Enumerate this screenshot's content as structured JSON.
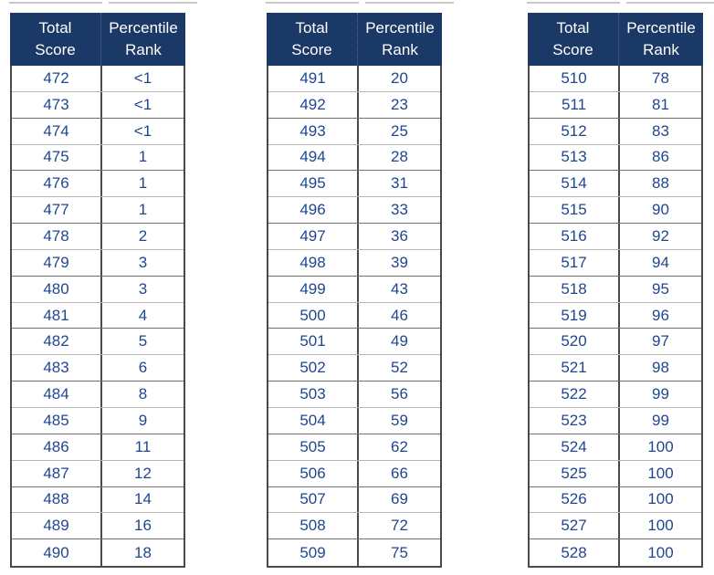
{
  "colors": {
    "header_bg": "#1B3966",
    "header_text": "#FFFFFF",
    "cell_text": "#1F4690",
    "outer_border": "#4A4A4A",
    "row_line_light": "#B5B5B5",
    "row_line_dark": "#6F6F6F"
  },
  "tables": [
    {
      "header": {
        "score": "Total\nScore",
        "rank": "Percentile\nRank"
      },
      "rows": [
        {
          "score": "472",
          "rank": "<1"
        },
        {
          "score": "473",
          "rank": "<1"
        },
        {
          "score": "474",
          "rank": "<1"
        },
        {
          "score": "475",
          "rank": "1"
        },
        {
          "score": "476",
          "rank": "1"
        },
        {
          "score": "477",
          "rank": "1"
        },
        {
          "score": "478",
          "rank": "2"
        },
        {
          "score": "479",
          "rank": "3"
        },
        {
          "score": "480",
          "rank": "3"
        },
        {
          "score": "481",
          "rank": "4"
        },
        {
          "score": "482",
          "rank": "5"
        },
        {
          "score": "483",
          "rank": "6"
        },
        {
          "score": "484",
          "rank": "8"
        },
        {
          "score": "485",
          "rank": "9"
        },
        {
          "score": "486",
          "rank": "11"
        },
        {
          "score": "487",
          "rank": "12"
        },
        {
          "score": "488",
          "rank": "14"
        },
        {
          "score": "489",
          "rank": "16"
        },
        {
          "score": "490",
          "rank": "18"
        }
      ]
    },
    {
      "header": {
        "score": "Total\nScore",
        "rank": "Percentile\nRank"
      },
      "rows": [
        {
          "score": "491",
          "rank": "20"
        },
        {
          "score": "492",
          "rank": "23"
        },
        {
          "score": "493",
          "rank": "25"
        },
        {
          "score": "494",
          "rank": "28"
        },
        {
          "score": "495",
          "rank": "31"
        },
        {
          "score": "496",
          "rank": "33"
        },
        {
          "score": "497",
          "rank": "36"
        },
        {
          "score": "498",
          "rank": "39"
        },
        {
          "score": "499",
          "rank": "43"
        },
        {
          "score": "500",
          "rank": "46"
        },
        {
          "score": "501",
          "rank": "49"
        },
        {
          "score": "502",
          "rank": "52"
        },
        {
          "score": "503",
          "rank": "56"
        },
        {
          "score": "504",
          "rank": "59"
        },
        {
          "score": "505",
          "rank": "62"
        },
        {
          "score": "506",
          "rank": "66"
        },
        {
          "score": "507",
          "rank": "69"
        },
        {
          "score": "508",
          "rank": "72"
        },
        {
          "score": "509",
          "rank": "75"
        }
      ]
    },
    {
      "header": {
        "score": "Total\nScore",
        "rank": "Percentile\nRank"
      },
      "rows": [
        {
          "score": "510",
          "rank": "78"
        },
        {
          "score": "511",
          "rank": "81"
        },
        {
          "score": "512",
          "rank": "83"
        },
        {
          "score": "513",
          "rank": "86"
        },
        {
          "score": "514",
          "rank": "88"
        },
        {
          "score": "515",
          "rank": "90"
        },
        {
          "score": "516",
          "rank": "92"
        },
        {
          "score": "517",
          "rank": "94"
        },
        {
          "score": "518",
          "rank": "95"
        },
        {
          "score": "519",
          "rank": "96"
        },
        {
          "score": "520",
          "rank": "97"
        },
        {
          "score": "521",
          "rank": "98"
        },
        {
          "score": "522",
          "rank": "99"
        },
        {
          "score": "523",
          "rank": "99"
        },
        {
          "score": "524",
          "rank": "100"
        },
        {
          "score": "525",
          "rank": "100"
        },
        {
          "score": "526",
          "rank": "100"
        },
        {
          "score": "527",
          "rank": "100"
        },
        {
          "score": "528",
          "rank": "100"
        }
      ]
    }
  ]
}
